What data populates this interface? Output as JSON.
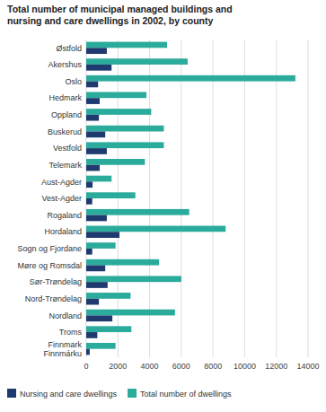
{
  "chart_data": {
    "type": "bar",
    "orientation": "horizontal",
    "title": "Total number of municipal managed buildings and\nnursing and care dwellings in 2002, by county",
    "categories": [
      "Østfold",
      "Akershus",
      "Oslo",
      "Hedmark",
      "Oppland",
      "Buskerud",
      "Vestfold",
      "Telemark",
      "Aust-Agder",
      "Vest-Agder",
      "Rogaland",
      "Hordaland",
      "Sogn og Fjordane",
      "Møre og Romsdal",
      "Sør-Trøndelag",
      "Nord-Trøndelag",
      "Nordland",
      "Troms",
      "Finnmark\nFinnmárku"
    ],
    "series": [
      {
        "name": "Total number of dwellings",
        "color": "#2aab9b",
        "values": [
          5100,
          6400,
          13200,
          3800,
          4100,
          4900,
          4900,
          3700,
          1600,
          3100,
          6500,
          8800,
          1850,
          4600,
          6000,
          2800,
          5600,
          2850,
          1850
        ]
      },
      {
        "name": "Nursing and care dwellings",
        "color": "#1e3a6e",
        "values": [
          1300,
          1600,
          750,
          850,
          800,
          1200,
          1300,
          850,
          400,
          380,
          1300,
          2100,
          380,
          1200,
          1350,
          800,
          1650,
          700,
          220
        ]
      }
    ],
    "xlim": [
      0,
      14000
    ],
    "xticks": [
      0,
      2000,
      4000,
      6000,
      8000,
      10000,
      12000,
      14000
    ],
    "grid": true,
    "legend": "lower left"
  }
}
